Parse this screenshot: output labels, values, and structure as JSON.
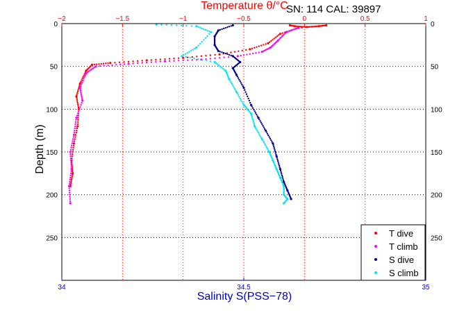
{
  "chart_data": {
    "type": "scatter",
    "title": "",
    "header_text": "SN: 114  CAL: 39897",
    "ylabel": "Depth (m)",
    "xlabel_top": "Temperature θ/°C",
    "xlabel_bottom": "Salinity S(PSS−78)",
    "y_reversed": true,
    "ylim": [
      0,
      300
    ],
    "yticks": [
      0,
      50,
      100,
      150,
      200,
      250
    ],
    "ytick_labels": [
      "0",
      "50",
      "100",
      "150",
      "200",
      "250"
    ],
    "xlim_top": [
      -2,
      1
    ],
    "xticks_top": [
      -2,
      -1.5,
      -1,
      -0.5,
      0,
      0.5,
      1
    ],
    "xtick_labels_top": [
      "−2",
      "−1.5",
      "−1",
      "−0.5",
      "0",
      "0.5",
      "1"
    ],
    "xlim_bottom": [
      34,
      35
    ],
    "xticks_bottom": [
      34,
      34.5,
      35
    ],
    "xtick_labels_bottom": [
      "34",
      "34.5",
      "35"
    ],
    "grid": true,
    "legend_position": "bottom-right",
    "colors": {
      "temperature_axis": "#ff0000",
      "salinity_axis": "#0000cc",
      "grid_temp": "#ff0000",
      "grid_depth": "#000000"
    },
    "series": [
      {
        "name": "T dive",
        "axis": "temperature",
        "color": "#ff0000",
        "x": [
          -0.12,
          -0.08,
          0.02,
          0.12,
          0.18,
          -0.05,
          -0.2,
          -0.3,
          -0.45,
          -0.7,
          -1.0,
          -1.3,
          -1.6,
          -1.75,
          -1.8,
          -1.85,
          -1.88,
          -1.86,
          -1.87,
          -1.9,
          -1.92,
          -1.91,
          -1.93
        ],
        "y": [
          2,
          3,
          4,
          3,
          2,
          5,
          12,
          23,
          30,
          36,
          40,
          43,
          46,
          48,
          55,
          70,
          85,
          100,
          120,
          140,
          160,
          175,
          190
        ]
      },
      {
        "name": "T climb",
        "axis": "temperature",
        "color": "#ff00ff",
        "x": [
          -0.05,
          -0.15,
          -0.22,
          -0.28,
          -0.35,
          -0.55,
          -0.85,
          -1.15,
          -1.45,
          -1.72,
          -1.8,
          -1.85,
          -1.83,
          -1.88,
          -1.9,
          -1.93,
          -1.92,
          -1.94,
          -1.93
        ],
        "y": [
          5,
          10,
          20,
          28,
          33,
          38,
          42,
          44,
          47,
          50,
          58,
          75,
          90,
          110,
          130,
          150,
          170,
          190,
          210
        ]
      },
      {
        "name": "S dive",
        "axis": "salinity",
        "color": "#00008b",
        "x": [
          34.47,
          34.43,
          34.42,
          34.42,
          34.43,
          34.47,
          34.49,
          34.47,
          34.48,
          34.5,
          34.52,
          34.54,
          34.56,
          34.58,
          34.59,
          34.6,
          34.61,
          34.62,
          34.63
        ],
        "y": [
          2,
          8,
          15,
          25,
          32,
          38,
          45,
          52,
          60,
          75,
          95,
          110,
          125,
          140,
          155,
          170,
          185,
          195,
          205
        ]
      },
      {
        "name": "S climb",
        "axis": "salinity",
        "color": "#00e5ee",
        "x": [
          34.26,
          34.37,
          34.41,
          34.37,
          34.33,
          34.42,
          34.45,
          34.46,
          34.48,
          34.5,
          34.52,
          34.53,
          34.55,
          34.57,
          34.58,
          34.59,
          34.6,
          34.61,
          34.61,
          34.62,
          34.61
        ],
        "y": [
          1,
          3,
          10,
          28,
          38,
          45,
          55,
          65,
          80,
          95,
          105,
          120,
          135,
          150,
          160,
          170,
          180,
          190,
          200,
          205,
          210
        ]
      }
    ]
  }
}
